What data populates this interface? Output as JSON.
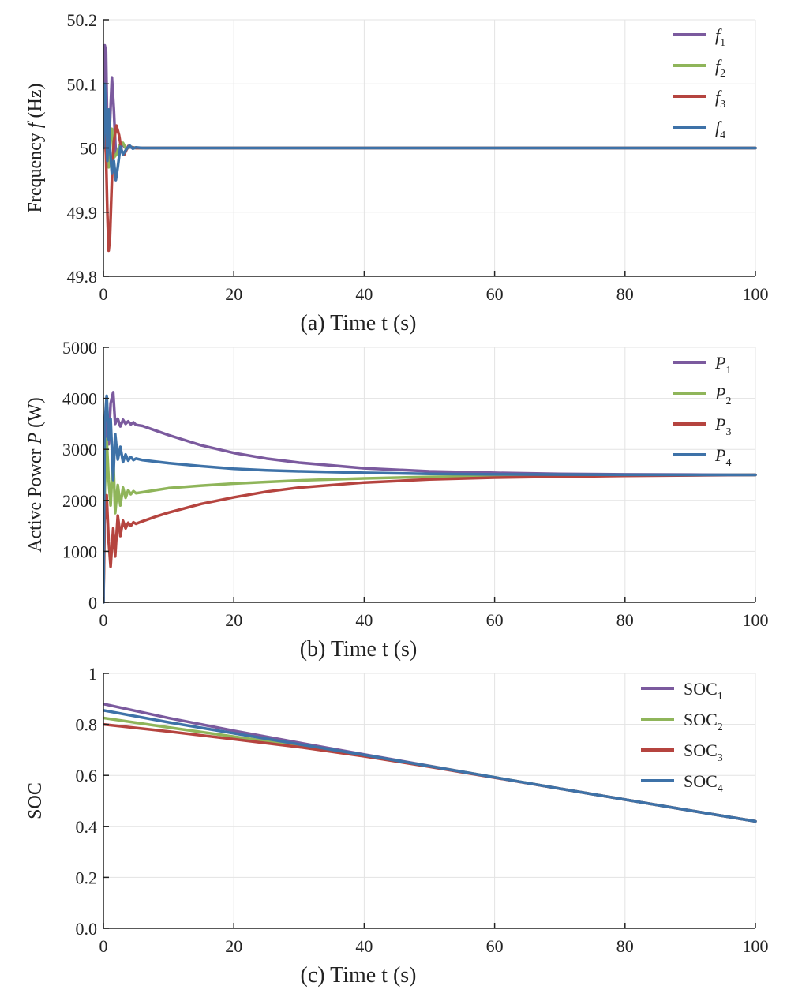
{
  "colors": {
    "purple": "#7B5A9E",
    "green": "#8FB55A",
    "red": "#B5443F",
    "blue": "#3E72A8",
    "grid": "#E3E3E3",
    "axis": "#222222"
  },
  "chart_data": [
    {
      "type": "line",
      "xlabel": "(a) Time t (s)",
      "ylabel_parts": [
        "Frequency ",
        "f",
        " (Hz)"
      ],
      "xlim": [
        0,
        100
      ],
      "ylim": [
        49.8,
        50.2
      ],
      "xticks": [
        0,
        20,
        40,
        60,
        80,
        100
      ],
      "xtick_labels": [
        "0",
        "20",
        "40",
        "60",
        "80",
        "100"
      ],
      "yticks": [
        49.8,
        49.9,
        50,
        50.1,
        50.2
      ],
      "ytick_labels": [
        "49.8",
        "49.9",
        "50",
        "50.1",
        "50.2"
      ],
      "legend_position": "top-right",
      "legend_italic": true,
      "series": [
        {
          "name": "f1",
          "legend_main": "f",
          "legend_sub": "1",
          "color": "#7B5A9E",
          "x": [
            0,
            0.2,
            0.4,
            0.6,
            0.8,
            1.0,
            1.3,
            1.6,
            1.9,
            2.2,
            2.6,
            3.0,
            3.5,
            4.0,
            5.0,
            6.0,
            8.0,
            100
          ],
          "y": [
            50,
            50.16,
            50.15,
            50.02,
            49.98,
            50.04,
            50.11,
            50.06,
            49.99,
            49.995,
            50.003,
            50.004,
            49.999,
            50.001,
            50,
            50,
            50,
            50
          ]
        },
        {
          "name": "f2",
          "legend_main": "f",
          "legend_sub": "2",
          "color": "#8FB55A",
          "x": [
            0,
            0.2,
            0.4,
            0.6,
            0.8,
            1.0,
            1.3,
            1.6,
            2.0,
            2.5,
            3.0,
            3.5,
            4.0,
            5.0,
            6.0,
            8.0,
            100
          ],
          "y": [
            50,
            50.07,
            50.05,
            49.99,
            49.97,
            50.02,
            50.03,
            49.985,
            49.99,
            50.005,
            50.008,
            49.998,
            50.002,
            50,
            50,
            50,
            50
          ]
        },
        {
          "name": "f3",
          "legend_main": "f",
          "legend_sub": "3",
          "color": "#B5443F",
          "x": [
            0,
            0.2,
            0.4,
            0.6,
            0.8,
            1.0,
            1.3,
            1.6,
            2.0,
            2.4,
            2.8,
            3.2,
            3.8,
            4.4,
            5.0,
            6.0,
            8.0,
            100
          ],
          "y": [
            50,
            50.02,
            49.99,
            49.9,
            49.84,
            49.86,
            49.95,
            50.01,
            50.035,
            50.02,
            49.995,
            49.99,
            50.003,
            50.001,
            50,
            50,
            50,
            50
          ]
        },
        {
          "name": "f4",
          "legend_main": "f",
          "legend_sub": "4",
          "color": "#3E72A8",
          "x": [
            0,
            0.2,
            0.4,
            0.6,
            0.8,
            1.0,
            1.3,
            1.6,
            1.9,
            2.2,
            2.6,
            3.0,
            3.5,
            4.0,
            4.5,
            5.0,
            6.0,
            8.0,
            100
          ],
          "y": [
            50,
            50.1,
            50.05,
            49.98,
            50.06,
            50.0,
            49.96,
            49.98,
            49.95,
            49.97,
            50.002,
            49.99,
            49.998,
            50.004,
            49.999,
            50.001,
            50,
            50,
            50
          ]
        }
      ]
    },
    {
      "type": "line",
      "xlabel": "(b) Time t (s)",
      "ylabel_parts": [
        "Active Power ",
        "P",
        " (W)"
      ],
      "xlim": [
        0,
        100
      ],
      "ylim": [
        0,
        5000
      ],
      "xticks": [
        0,
        20,
        40,
        60,
        80,
        100
      ],
      "xtick_labels": [
        "0",
        "20",
        "40",
        "60",
        "80",
        "100"
      ],
      "yticks": [
        0,
        1000,
        2000,
        3000,
        4000,
        5000
      ],
      "ytick_labels": [
        "0",
        "1000",
        "2000",
        "3000",
        "4000",
        "5000"
      ],
      "legend_position": "top-right",
      "legend_italic": true,
      "series": [
        {
          "name": "P1",
          "legend_main": "P",
          "legend_sub": "1",
          "color": "#7B5A9E",
          "x": [
            0,
            0.2,
            0.5,
            0.8,
            1.1,
            1.5,
            1.8,
            2.2,
            2.6,
            3.0,
            3.4,
            3.8,
            4.2,
            4.6,
            5.0,
            6.0,
            8.0,
            10,
            15,
            20,
            25,
            30,
            40,
            50,
            60,
            70,
            80,
            90,
            100
          ],
          "y": [
            0,
            2500,
            3700,
            3100,
            3900,
            4120,
            3500,
            3600,
            3450,
            3580,
            3500,
            3550,
            3490,
            3530,
            3480,
            3460,
            3370,
            3280,
            3080,
            2930,
            2820,
            2740,
            2630,
            2570,
            2540,
            2520,
            2510,
            2505,
            2500
          ]
        },
        {
          "name": "P2",
          "legend_main": "P",
          "legend_sub": "2",
          "color": "#8FB55A",
          "x": [
            0,
            0.2,
            0.5,
            0.8,
            1.1,
            1.5,
            1.8,
            2.2,
            2.6,
            3.0,
            3.4,
            3.8,
            4.2,
            4.6,
            5.0,
            6.0,
            8.0,
            10,
            15,
            20,
            25,
            30,
            40,
            50,
            60,
            70,
            80,
            90,
            100
          ],
          "y": [
            0,
            2200,
            3200,
            2400,
            1900,
            2900,
            1750,
            2300,
            1900,
            2250,
            2050,
            2200,
            2120,
            2180,
            2140,
            2160,
            2200,
            2240,
            2290,
            2330,
            2360,
            2390,
            2430,
            2460,
            2475,
            2485,
            2490,
            2495,
            2500
          ]
        },
        {
          "name": "P3",
          "legend_main": "P",
          "legend_sub": "3",
          "color": "#B5443F",
          "x": [
            0,
            0.2,
            0.5,
            0.8,
            1.1,
            1.5,
            1.8,
            2.2,
            2.6,
            3.0,
            3.4,
            3.8,
            4.2,
            4.6,
            5.0,
            6.0,
            8.0,
            10,
            15,
            20,
            25,
            30,
            40,
            50,
            60,
            70,
            80,
            90,
            100
          ],
          "y": [
            0,
            1600,
            2100,
            1200,
            700,
            1450,
            900,
            1700,
            1300,
            1600,
            1450,
            1560,
            1500,
            1570,
            1540,
            1590,
            1680,
            1760,
            1930,
            2060,
            2170,
            2250,
            2350,
            2410,
            2445,
            2465,
            2480,
            2490,
            2500
          ]
        },
        {
          "name": "P4",
          "legend_main": "P",
          "legend_sub": "4",
          "color": "#3E72A8",
          "x": [
            0,
            0.2,
            0.5,
            0.8,
            1.1,
            1.5,
            1.8,
            2.2,
            2.6,
            3.0,
            3.4,
            3.8,
            4.2,
            4.6,
            5.0,
            6.0,
            8.0,
            10,
            15,
            20,
            25,
            30,
            40,
            50,
            60,
            70,
            80,
            90,
            100
          ],
          "y": [
            0,
            3500,
            4050,
            3200,
            3600,
            2400,
            3300,
            2800,
            3050,
            2750,
            2900,
            2780,
            2850,
            2790,
            2820,
            2790,
            2760,
            2730,
            2670,
            2620,
            2590,
            2570,
            2540,
            2520,
            2510,
            2505,
            2502,
            2501,
            2500
          ]
        }
      ]
    },
    {
      "type": "line",
      "xlabel": "(c) Time t (s)",
      "ylabel_parts": [
        "SOC"
      ],
      "xlim": [
        0,
        100
      ],
      "ylim": [
        0,
        1
      ],
      "xticks": [
        0,
        20,
        40,
        60,
        80,
        100
      ],
      "xtick_labels": [
        "0",
        "20",
        "40",
        "60",
        "80",
        "100"
      ],
      "yticks": [
        0,
        0.2,
        0.4,
        0.6,
        0.8,
        1.0
      ],
      "ytick_labels": [
        "0.0",
        "0.2",
        "0.4",
        "0.6",
        "0.8",
        "1"
      ],
      "legend_position": "top-right",
      "legend_italic": false,
      "series": [
        {
          "name": "SOC1",
          "legend_main": "SOC",
          "legend_sub": "1",
          "color": "#7B5A9E",
          "x": [
            0,
            10,
            20,
            30,
            40,
            50,
            60,
            70,
            80,
            90,
            100
          ],
          "y": [
            0.88,
            0.825,
            0.775,
            0.728,
            0.682,
            0.637,
            0.592,
            0.548,
            0.505,
            0.462,
            0.42
          ]
        },
        {
          "name": "SOC2",
          "legend_main": "SOC",
          "legend_sub": "2",
          "color": "#8FB55A",
          "x": [
            0,
            10,
            20,
            30,
            40,
            50,
            60,
            70,
            80,
            90,
            100
          ],
          "y": [
            0.825,
            0.788,
            0.752,
            0.716,
            0.678,
            0.636,
            0.592,
            0.548,
            0.505,
            0.462,
            0.42
          ]
        },
        {
          "name": "SOC3",
          "legend_main": "SOC",
          "legend_sub": "3",
          "color": "#B5443F",
          "x": [
            0,
            10,
            20,
            30,
            40,
            50,
            60,
            70,
            80,
            90,
            100
          ],
          "y": [
            0.8,
            0.772,
            0.742,
            0.711,
            0.675,
            0.634,
            0.591,
            0.548,
            0.505,
            0.462,
            0.42
          ]
        },
        {
          "name": "SOC4",
          "legend_main": "SOC",
          "legend_sub": "4",
          "color": "#3E72A8",
          "x": [
            0,
            10,
            20,
            30,
            40,
            50,
            60,
            70,
            80,
            90,
            100
          ],
          "y": [
            0.855,
            0.808,
            0.765,
            0.722,
            0.68,
            0.636,
            0.592,
            0.548,
            0.505,
            0.462,
            0.42
          ]
        }
      ]
    }
  ]
}
